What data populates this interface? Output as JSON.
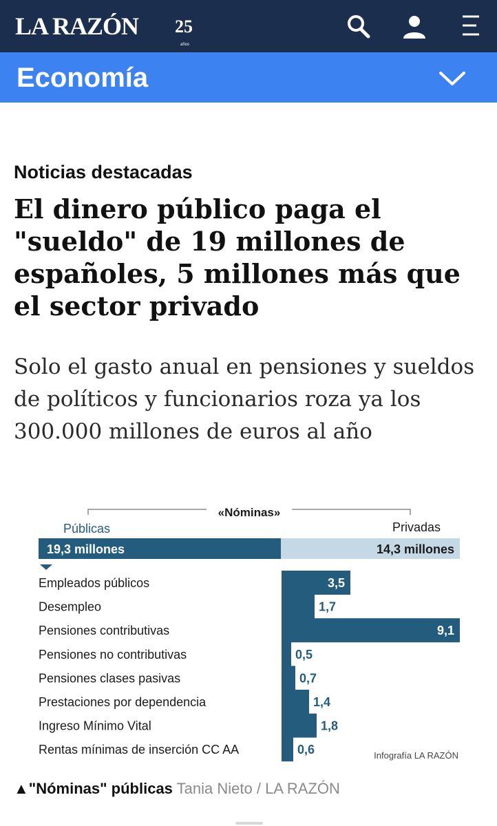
{
  "header": {
    "logo_text": "LA RAZÓN",
    "anniversary_number": "25",
    "anniversary_word": "años",
    "icons": [
      "search-icon",
      "user-icon",
      "menu-icon"
    ]
  },
  "section": {
    "title": "Economía",
    "icon": "chevron-down-icon"
  },
  "article": {
    "kicker": "Noticias destacadas",
    "headline": "El dinero público paga el \"sueldo\" de 19 millones de españoles, 5 millones más que el sector privado",
    "subheadline": "Solo el gasto anual en pensiones y sueldos de políticos y funcionarios roza ya los 300.000 millones de euros al año"
  },
  "chart_data": {
    "type": "bar",
    "title": "«Nóminas»",
    "total_split": [
      {
        "name": "Públicas",
        "label": "19,3 millones",
        "value": 19.3
      },
      {
        "name": "Privadas",
        "label": "14,3 millones",
        "value": 14.3
      }
    ],
    "categories": [
      "Empleados públicos",
      "Desempleo",
      "Pensiones contributivas",
      "Pensiones no contributivas",
      "Pensiones clases pasivas",
      "Prestaciones por dependencia",
      "Ingreso Mínimo Vital",
      "Rentas mínimas de inserción CC AA"
    ],
    "values": [
      3.5,
      1.7,
      9.1,
      0.5,
      0.7,
      1.4,
      1.8,
      0.6
    ],
    "value_labels": [
      "3,5",
      "1,7",
      "9,1",
      "0,5",
      "0,7",
      "1,4",
      "1,8",
      "0,6"
    ],
    "source": "Infografía LA RAZÓN",
    "colors": {
      "public": "#245c7e",
      "private": "#c5d8e6",
      "text": "#1a1a1a",
      "bracket": "#8a8a8a"
    }
  },
  "caption": {
    "marker": "▲",
    "title": "\"Nóminas\" públicas",
    "credit_author": "Tania Nieto",
    "separator": "/",
    "credit_outlet": "LA RAZÓN"
  },
  "colors": {
    "topbar": "#1c2e4d",
    "section_bar": "#3c82f0"
  }
}
